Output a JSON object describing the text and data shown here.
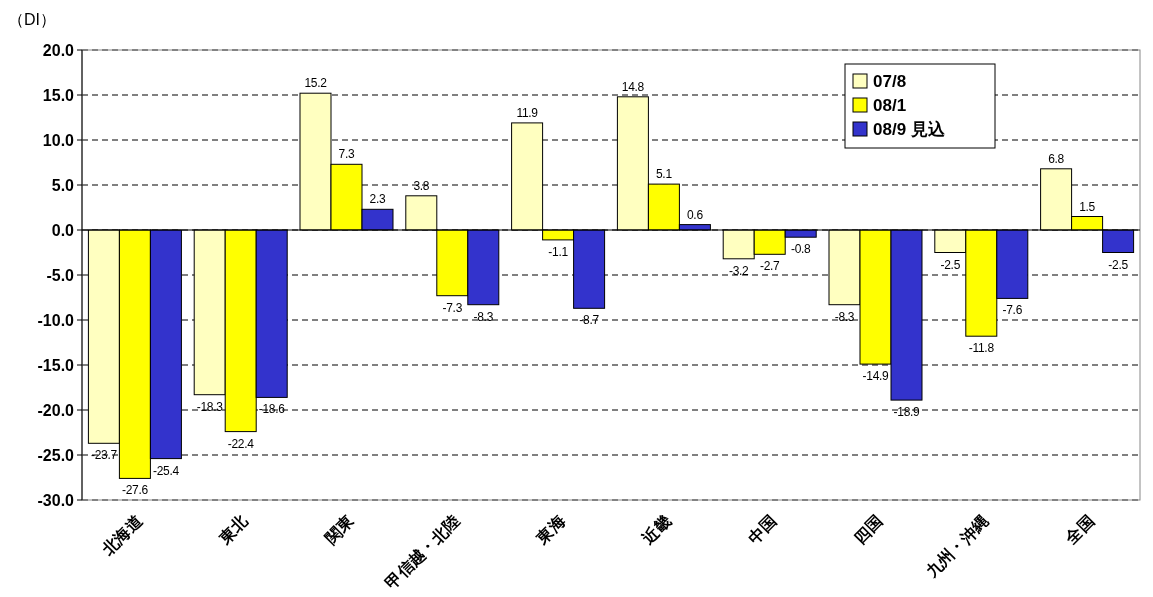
{
  "chart_data": {
    "type": "bar",
    "ylabel": "（DI）",
    "categories": [
      "北海道",
      "東北",
      "関東",
      "甲信越・北陸",
      "東海",
      "近畿",
      "中国",
      "四国",
      "九州・沖縄",
      "全国"
    ],
    "series": [
      {
        "name": "07/8",
        "color": "#ffffc0",
        "values": [
          -23.7,
          -18.3,
          15.2,
          3.8,
          11.9,
          14.8,
          -3.2,
          -8.3,
          -2.5,
          6.8
        ]
      },
      {
        "name": "08/1",
        "color": "#ffff00",
        "values": [
          -27.6,
          -22.4,
          7.3,
          -7.3,
          -1.1,
          5.1,
          -2.7,
          -14.9,
          -11.8,
          1.5
        ]
      },
      {
        "name": "08/9 見込",
        "color": "#3333cc",
        "values": [
          -25.4,
          -18.6,
          2.3,
          -8.3,
          -8.7,
          0.6,
          -0.8,
          -18.9,
          -7.6,
          -2.5
        ]
      }
    ],
    "ylim": [
      -30,
      20
    ],
    "yticks": [
      {
        "value": -30,
        "label": "-30.0"
      },
      {
        "value": -25,
        "label": "-25.0"
      },
      {
        "value": -20,
        "label": "-20.0"
      },
      {
        "value": -15,
        "label": "-15.0"
      },
      {
        "value": -10,
        "label": "-10.0"
      },
      {
        "value": -5,
        "label": "-5.0"
      },
      {
        "value": 0,
        "label": "0.0"
      },
      {
        "value": 5,
        "label": "5.0"
      },
      {
        "value": 10,
        "label": "10.0"
      },
      {
        "value": 15,
        "label": "15.0"
      },
      {
        "value": 20,
        "label": "20.0"
      }
    ],
    "grid": "y",
    "legend": "top right",
    "data_labels": true
  }
}
